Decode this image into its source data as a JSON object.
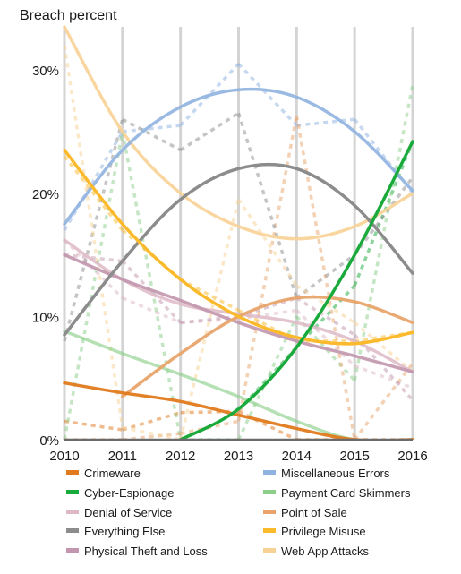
{
  "chart_data": {
    "type": "line",
    "title": "Breach percent",
    "xlabel": "",
    "ylabel": "",
    "x": [
      2010,
      2011,
      2012,
      2013,
      2014,
      2015,
      2016
    ],
    "x_tick_labels": [
      "2010",
      "2011",
      "2012",
      "2013",
      "2014",
      "2015",
      "2016"
    ],
    "ylim": [
      0,
      33.5
    ],
    "y_ticks": [
      0,
      10,
      20,
      30
    ],
    "y_tick_labels": [
      "0%",
      "10%",
      "20%",
      "30%"
    ],
    "grid": "vertical",
    "legend_position": "bottom",
    "series": [
      {
        "name": "Crimeware",
        "color": "#e07a1c",
        "values": [
          1.5,
          0.8,
          2.2,
          2.3,
          0.0,
          0.0,
          0.0
        ],
        "trend": [
          4.6,
          3.8,
          3.1,
          2.0,
          0.9,
          0.0,
          0.0
        ]
      },
      {
        "name": "Miscellaneous Errors",
        "color": "#8fb2e0",
        "values": [
          17.0,
          25.0,
          25.5,
          30.5,
          25.5,
          26.0,
          20.0
        ],
        "trend": [
          17.5,
          23.5,
          27.0,
          28.4,
          27.8,
          25.0,
          20.2
        ]
      },
      {
        "name": "Cyber-Espionage",
        "color": "#1aaa3c",
        "values": [
          1.3,
          null,
          null,
          2.4,
          7.5,
          12.5,
          24.2
        ],
        "trend": [
          1.3,
          null,
          0.0,
          2.5,
          7.5,
          15.0,
          24.2
        ]
      },
      {
        "name": "Payment Card Skimmers",
        "color": "#8ccf8a",
        "values": [
          0.0,
          25.0,
          0.0,
          0.0,
          10.0,
          4.8,
          28.8
        ],
        "trend": [
          8.8,
          7.0,
          5.3,
          3.5,
          1.5,
          0.0,
          0.0
        ]
      },
      {
        "name": "Denial of Service",
        "color": "#ddb8c6",
        "values": [
          16.2,
          11.5,
          9.5,
          9.8,
          10.5,
          6.0,
          4.2
        ],
        "trend": [
          16.2,
          13.0,
          11.0,
          10.2,
          9.5,
          8.0,
          5.5
        ]
      },
      {
        "name": "Point of Sale",
        "color": "#e8a46c",
        "values": [
          0.0,
          0.0,
          0.5,
          1.5,
          26.3,
          0.0,
          6.2
        ],
        "trend": [
          null,
          3.5,
          7.0,
          10.0,
          11.5,
          11.2,
          9.5
        ]
      },
      {
        "name": "Everything Else",
        "color": "#8c8c8c",
        "values": [
          8.0,
          26.0,
          23.5,
          26.5,
          11.5,
          15.0,
          21.3
        ],
        "trend": [
          8.5,
          14.5,
          19.5,
          22.0,
          22.0,
          19.0,
          13.5
        ]
      },
      {
        "name": "Privilege Misuse",
        "color": "#fbb92c",
        "values": [
          23.0,
          17.0,
          13.0,
          10.5,
          8.0,
          8.0,
          8.7
        ],
        "trend": [
          23.5,
          17.5,
          13.0,
          10.0,
          8.3,
          7.8,
          8.7
        ]
      },
      {
        "name": "Physical Theft and Loss",
        "color": "#c296ae",
        "values": [
          15.0,
          14.5,
          9.5,
          10.0,
          11.5,
          8.5,
          3.2
        ],
        "trend": [
          15.0,
          13.0,
          11.3,
          9.5,
          8.0,
          6.8,
          5.5
        ]
      },
      {
        "name": "Web App Attacks",
        "color": "#f8d295",
        "values": [
          32.0,
          1.0,
          0.0,
          19.5,
          12.5,
          9.5,
          5.5
        ],
        "trend": [
          33.5,
          25.0,
          20.0,
          17.3,
          16.3,
          17.3,
          20.0
        ]
      }
    ],
    "legend_order": [
      "Crimeware",
      "Miscellaneous Errors",
      "Cyber-Espionage",
      "Payment Card Skimmers",
      "Denial of Service",
      "Point of Sale",
      "Everything Else",
      "Privilege Misuse",
      "Physical Theft and Loss",
      "Web App Attacks"
    ]
  }
}
